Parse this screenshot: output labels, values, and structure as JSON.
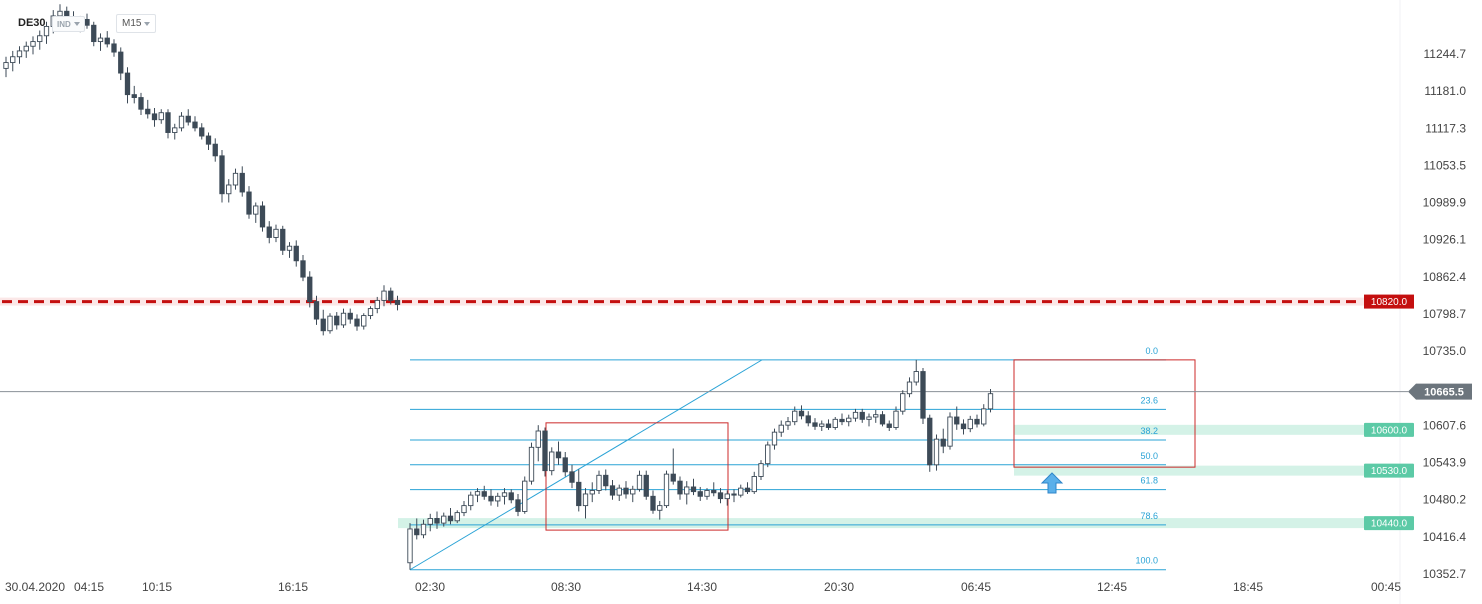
{
  "header": {
    "symbol": "DE30",
    "instrument_badge": "IND",
    "timeframe": "M15"
  },
  "colors": {
    "candle": "#3d4a57",
    "resistance": "#c40f0f",
    "support_zone": "#d4f2e7",
    "support_label": "#5ccaa6",
    "fib": "#2aa3d6",
    "box": "#cc2a2a",
    "arrow": "#5ab0ea",
    "current_price_bg": "#6c757d"
  },
  "chart_data": {
    "type": "candlestick",
    "symbol": "DE30",
    "timeframe": "M15",
    "price_axis": {
      "ticks": [
        "11244.7",
        "11181.0",
        "11117.3",
        "11053.5",
        "10989.9",
        "10926.1",
        "10862.4",
        "10798.7",
        "10735.0",
        "10607.6",
        "10543.9",
        "10480.2",
        "10416.4",
        "10352.7"
      ],
      "range": [
        10340,
        11280
      ]
    },
    "time_axis": {
      "ticks": [
        "30.04.2020",
        "04:15",
        "10:15",
        "16:15",
        "02:30",
        "08:30",
        "14:30",
        "20:30",
        "06:45",
        "12:45",
        "18:45",
        "00:45"
      ]
    },
    "current_price": "10665.5",
    "resistance": {
      "value": 10820.0,
      "label": "10820.0",
      "style": "dashed"
    },
    "support_zones": [
      {
        "value": 10600.0,
        "label": "10600.0"
      },
      {
        "value": 10530.0,
        "label": "10530.0"
      },
      {
        "value": 10440.0,
        "label": "10440.0"
      }
    ],
    "fibonacci": {
      "high": 10720,
      "low": 10360,
      "levels": [
        {
          "ratio": 0.0,
          "label": "0.0"
        },
        {
          "ratio": 0.236,
          "label": "23.6"
        },
        {
          "ratio": 0.382,
          "label": "38.2"
        },
        {
          "ratio": 0.5,
          "label": "50.0"
        },
        {
          "ratio": 0.618,
          "label": "61.8"
        },
        {
          "ratio": 0.786,
          "label": "78.6"
        },
        {
          "ratio": 1.0,
          "label": "100.0"
        }
      ]
    },
    "ohlc": [
      [
        11220,
        11240,
        11205,
        11230
      ],
      [
        11230,
        11250,
        11215,
        11240
      ],
      [
        11240,
        11258,
        11228,
        11250
      ],
      [
        11250,
        11266,
        11238,
        11258
      ],
      [
        11258,
        11275,
        11244,
        11266
      ],
      [
        11266,
        11285,
        11252,
        11276
      ],
      [
        11276,
        11300,
        11262,
        11292
      ],
      [
        11292,
        11320,
        11280,
        11310
      ],
      [
        11310,
        11330,
        11298,
        11318
      ],
      [
        11318,
        11326,
        11300,
        11306
      ],
      [
        11306,
        11318,
        11290,
        11298
      ],
      [
        11298,
        11310,
        11282,
        11304
      ],
      [
        11304,
        11314,
        11288,
        11294
      ],
      [
        11294,
        11300,
        11258,
        11266
      ],
      [
        11266,
        11280,
        11250,
        11272
      ],
      [
        11272,
        11284,
        11256,
        11262
      ],
      [
        11262,
        11270,
        11240,
        11248
      ],
      [
        11248,
        11256,
        11200,
        11212
      ],
      [
        11212,
        11222,
        11160,
        11175
      ],
      [
        11175,
        11190,
        11160,
        11170
      ],
      [
        11170,
        11178,
        11140,
        11150
      ],
      [
        11150,
        11166,
        11134,
        11142
      ],
      [
        11142,
        11152,
        11120,
        11132
      ],
      [
        11132,
        11150,
        11125,
        11144
      ],
      [
        11144,
        11150,
        11100,
        11110
      ],
      [
        11110,
        11125,
        11098,
        11118
      ],
      [
        11118,
        11145,
        11112,
        11138
      ],
      [
        11138,
        11150,
        11122,
        11128
      ],
      [
        11128,
        11138,
        11112,
        11118
      ],
      [
        11118,
        11126,
        11098,
        11104
      ],
      [
        11104,
        11110,
        11080,
        11090
      ],
      [
        11090,
        11100,
        11060,
        11070
      ],
      [
        11070,
        11080,
        10990,
        11005
      ],
      [
        11005,
        11030,
        10990,
        11020
      ],
      [
        11020,
        11048,
        11012,
        11040
      ],
      [
        11040,
        11052,
        11000,
        11008
      ],
      [
        11008,
        11018,
        10962,
        10970
      ],
      [
        10970,
        10990,
        10955,
        10984
      ],
      [
        10984,
        10992,
        10940,
        10948
      ],
      [
        10948,
        10958,
        10920,
        10930
      ],
      [
        10930,
        10952,
        10922,
        10944
      ],
      [
        10944,
        10950,
        10900,
        10908
      ],
      [
        10908,
        10922,
        10895,
        10915
      ],
      [
        10915,
        10925,
        10880,
        10890
      ],
      [
        10890,
        10900,
        10855,
        10862
      ],
      [
        10862,
        10872,
        10810,
        10820
      ],
      [
        10820,
        10830,
        10780,
        10790
      ],
      [
        10790,
        10806,
        10762,
        10770
      ],
      [
        10770,
        10800,
        10765,
        10795
      ],
      [
        10795,
        10802,
        10772,
        10780
      ],
      [
        10780,
        10808,
        10775,
        10800
      ],
      [
        10800,
        10808,
        10782,
        10790
      ],
      [
        10790,
        10798,
        10770,
        10778
      ],
      [
        10778,
        10800,
        10772,
        10796
      ],
      [
        10796,
        10812,
        10790,
        10808
      ],
      [
        10808,
        10828,
        10800,
        10822
      ],
      [
        10822,
        10848,
        10812,
        10838
      ],
      [
        10838,
        10844,
        10815,
        10822
      ],
      [
        10822,
        10830,
        10805,
        10815
      ],
      [
        10372,
        10440,
        10360,
        10430
      ],
      [
        10430,
        10448,
        10412,
        10420
      ],
      [
        10420,
        10446,
        10414,
        10438
      ],
      [
        10438,
        10456,
        10426,
        10448
      ],
      [
        10448,
        10460,
        10430,
        10440
      ],
      [
        10440,
        10458,
        10434,
        10452
      ],
      [
        10452,
        10466,
        10438,
        10444
      ],
      [
        10444,
        10462,
        10440,
        10458
      ],
      [
        10458,
        10478,
        10452,
        10470
      ],
      [
        10470,
        10494,
        10462,
        10488
      ],
      [
        10488,
        10500,
        10476,
        10494
      ],
      [
        10494,
        10504,
        10480,
        10486
      ],
      [
        10486,
        10498,
        10470,
        10478
      ],
      [
        10478,
        10492,
        10468,
        10486
      ],
      [
        10486,
        10500,
        10472,
        10492
      ],
      [
        10492,
        10498,
        10474,
        10480
      ],
      [
        10480,
        10490,
        10452,
        10460
      ],
      [
        10460,
        10520,
        10456,
        10512
      ],
      [
        10512,
        10578,
        10506,
        10570
      ],
      [
        10570,
        10608,
        10546,
        10598
      ],
      [
        10598,
        10604,
        10520,
        10530
      ],
      [
        10530,
        10570,
        10522,
        10562
      ],
      [
        10562,
        10580,
        10540,
        10552
      ],
      [
        10552,
        10562,
        10520,
        10528
      ],
      [
        10528,
        10540,
        10500,
        10510
      ],
      [
        10510,
        10532,
        10460,
        10470
      ],
      [
        10470,
        10500,
        10448,
        10490
      ],
      [
        10490,
        10510,
        10476,
        10496
      ],
      [
        10496,
        10530,
        10490,
        10522
      ],
      [
        10522,
        10532,
        10496,
        10504
      ],
      [
        10504,
        10514,
        10480,
        10488
      ],
      [
        10488,
        10506,
        10478,
        10500
      ],
      [
        10500,
        10512,
        10482,
        10490
      ],
      [
        10490,
        10504,
        10476,
        10498
      ],
      [
        10498,
        10530,
        10494,
        10522
      ],
      [
        10522,
        10530,
        10480,
        10486
      ],
      [
        10486,
        10496,
        10456,
        10462
      ],
      [
        10462,
        10478,
        10446,
        10470
      ],
      [
        10470,
        10530,
        10466,
        10524
      ],
      [
        10524,
        10568,
        10506,
        10512
      ],
      [
        10512,
        10520,
        10480,
        10490
      ],
      [
        10490,
        10512,
        10472,
        10502
      ],
      [
        10502,
        10516,
        10488,
        10494
      ],
      [
        10494,
        10502,
        10478,
        10486
      ],
      [
        10486,
        10500,
        10480,
        10496
      ],
      [
        10496,
        10510,
        10486,
        10492
      ],
      [
        10492,
        10500,
        10474,
        10482
      ],
      [
        10482,
        10496,
        10470,
        10490
      ],
      [
        10490,
        10498,
        10476,
        10488
      ],
      [
        10488,
        10506,
        10484,
        10500
      ],
      [
        10500,
        10510,
        10490,
        10494
      ],
      [
        10494,
        10528,
        10490,
        10520
      ],
      [
        10520,
        10548,
        10514,
        10542
      ],
      [
        10542,
        10580,
        10536,
        10574
      ],
      [
        10574,
        10602,
        10566,
        10596
      ],
      [
        10596,
        10616,
        10588,
        10608
      ],
      [
        10608,
        10622,
        10600,
        10614
      ],
      [
        10614,
        10640,
        10608,
        10632
      ],
      [
        10632,
        10642,
        10618,
        10624
      ],
      [
        10624,
        10632,
        10606,
        10612
      ],
      [
        10612,
        10620,
        10600,
        10606
      ],
      [
        10606,
        10616,
        10598,
        10610
      ],
      [
        10610,
        10618,
        10600,
        10604
      ],
      [
        10604,
        10622,
        10600,
        10618
      ],
      [
        10618,
        10628,
        10608,
        10614
      ],
      [
        10614,
        10626,
        10606,
        10620
      ],
      [
        10620,
        10636,
        10614,
        10630
      ],
      [
        10630,
        10636,
        10612,
        10618
      ],
      [
        10618,
        10628,
        10606,
        10622
      ],
      [
        10622,
        10634,
        10612,
        10626
      ],
      [
        10626,
        10632,
        10606,
        10610
      ],
      [
        10610,
        10616,
        10598,
        10604
      ],
      [
        10604,
        10640,
        10600,
        10632
      ],
      [
        10632,
        10668,
        10626,
        10662
      ],
      [
        10662,
        10690,
        10656,
        10682
      ],
      [
        10682,
        10720,
        10676,
        10700
      ],
      [
        10700,
        10706,
        10610,
        10620
      ],
      [
        10620,
        10626,
        10528,
        10540
      ],
      [
        10540,
        10592,
        10530,
        10584
      ],
      [
        10584,
        10602,
        10560,
        10572
      ],
      [
        10572,
        10630,
        10566,
        10622
      ],
      [
        10622,
        10640,
        10600,
        10610
      ],
      [
        10610,
        10618,
        10592,
        10602
      ],
      [
        10602,
        10624,
        10596,
        10618
      ],
      [
        10618,
        10626,
        10604,
        10610
      ],
      [
        10610,
        10644,
        10606,
        10636
      ],
      [
        10636,
        10670,
        10630,
        10662
      ]
    ]
  }
}
